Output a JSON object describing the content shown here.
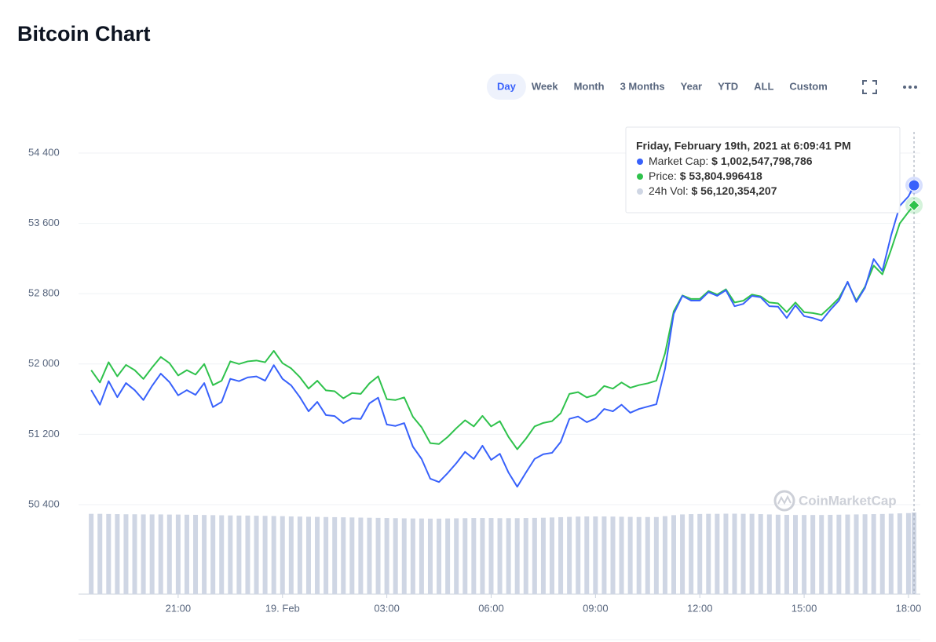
{
  "chart_data": {
    "type": "line",
    "title": "Bitcoin Chart",
    "toolbar": {
      "buttons": [
        "Day",
        "Week",
        "Month",
        "3 Months",
        "Year",
        "YTD",
        "ALL",
        "Custom"
      ],
      "active": 0
    },
    "x": [
      -5.5,
      -5.25,
      -5,
      -4.75,
      -4.5,
      -4.25,
      -4,
      -3.75,
      -3.5,
      -3.25,
      -3,
      -2.75,
      -2.5,
      -2.25,
      -2,
      -1.75,
      -1.5,
      -1.25,
      -1,
      -0.75,
      -0.5,
      -0.25,
      0,
      0.25,
      0.5,
      0.75,
      1,
      1.25,
      1.5,
      1.75,
      2,
      2.25,
      2.5,
      2.75,
      3,
      3.25,
      3.5,
      3.75,
      4,
      4.25,
      4.5,
      4.75,
      5,
      5.25,
      5.5,
      5.75,
      6,
      6.25,
      6.5,
      6.75,
      7,
      7.25,
      7.5,
      7.75,
      8,
      8.25,
      8.5,
      8.75,
      9,
      9.25,
      9.5,
      9.75,
      10,
      10.25,
      10.5,
      10.75,
      11,
      11.25,
      11.5,
      11.75,
      12,
      12.25,
      12.5,
      12.75,
      13,
      13.25,
      13.5,
      13.75,
      14,
      14.25,
      14.5,
      14.75,
      15,
      15.25,
      15.5,
      15.75,
      16,
      16.25,
      16.5,
      16.75,
      17,
      17.25,
      17.5,
      17.75,
      18,
      18.16
    ],
    "xlim": [
      -5.865,
      18.34
    ],
    "xticks": [
      {
        "value": -3,
        "label": "21:00"
      },
      {
        "value": 0,
        "label": "19. Feb"
      },
      {
        "value": 3,
        "label": "03:00"
      },
      {
        "value": 6,
        "label": "06:00"
      },
      {
        "value": 9,
        "label": "09:00"
      },
      {
        "value": 12,
        "label": "12:00"
      },
      {
        "value": 15,
        "label": "15:00"
      },
      {
        "value": 18,
        "label": "18:00"
      }
    ],
    "ylim": [
      50400,
      54400
    ],
    "yticks": [
      {
        "value": 50400,
        "label": "50 400"
      },
      {
        "value": 51200,
        "label": "51 200"
      },
      {
        "value": 52000,
        "label": "52 000"
      },
      {
        "value": 52800,
        "label": "52 800"
      },
      {
        "value": 53600,
        "label": "53 600"
      },
      {
        "value": 54400,
        "label": "54 400"
      }
    ],
    "y2lim": [
      934800000000,
      1009400000000
    ],
    "y3lim": [
      0,
      61500000000
    ],
    "grid": true,
    "series": [
      {
        "color": "#3861fb",
        "axis": "y2",
        "values": [
          959100000000,
          956000000000,
          961000000000,
          957600000000,
          960600000000,
          959100000000,
          957000000000,
          960000000000,
          962600000000,
          960800000000,
          958000000000,
          959100000000,
          958100000000,
          960600000000,
          955500000000,
          956600000000,
          961500000000,
          961000000000,
          961800000000,
          962000000000,
          961100000000,
          964400000000,
          961500000000,
          960100000000,
          957600000000,
          954600000000,
          956600000000,
          953800000000,
          953600000000,
          952100000000,
          953100000000,
          953000000000,
          956300000000,
          957500000000,
          951800000000,
          951500000000,
          952100000000,
          947100000000,
          944500000000,
          940300000000,
          939600000000,
          941500000000,
          943600000000,
          946000000000,
          944500000000,
          947300000000,
          944300000000,
          945600000000,
          941600000000,
          938600000000,
          941600000000,
          944500000000,
          945500000000,
          945800000000,
          948100000000,
          953000000000,
          953500000000,
          952300000000,
          953100000000,
          955100000000,
          954600000000,
          956000000000,
          954300000000,
          955100000000,
          955600000000,
          956100000000,
          963600000000,
          975300000000,
          979100000000,
          978100000000,
          978100000000,
          979900000000,
          979100000000,
          980300000000,
          976900000000,
          977400000000,
          979100000000,
          978800000000,
          976900000000,
          976800000000,
          974400000000,
          977100000000,
          974800000000,
          974400000000,
          973800000000,
          976100000000,
          978100000000,
          982100000000,
          977800000000,
          980800000000,
          986900000000,
          984400000000,
          991900000000,
          998200000000,
          1000200000000,
          1002547798786
        ]
      },
      {
        "color": "#2fc24c",
        "values": [
          51930,
          51790,
          52020,
          51860,
          51990,
          51930,
          51830,
          51960,
          52080,
          52010,
          51870,
          51930,
          51880,
          52000,
          51760,
          51810,
          52030,
          52000,
          52030,
          52040,
          52020,
          52150,
          52010,
          51950,
          51850,
          51720,
          51810,
          51700,
          51690,
          51610,
          51670,
          51660,
          51780,
          51860,
          51600,
          51590,
          51620,
          51400,
          51280,
          51100,
          51090,
          51170,
          51270,
          51360,
          51290,
          51410,
          51290,
          51350,
          51170,
          51030,
          51150,
          51290,
          51330,
          51350,
          51440,
          51660,
          51680,
          51620,
          51650,
          51750,
          51720,
          51790,
          51730,
          51760,
          51780,
          51810,
          52120,
          52600,
          52780,
          52740,
          52740,
          52830,
          52790,
          52850,
          52700,
          52720,
          52790,
          52770,
          52700,
          52690,
          52590,
          52700,
          52590,
          52580,
          52560,
          52650,
          52750,
          52930,
          52720,
          52880,
          53120,
          53020,
          53300,
          53600,
          53730,
          53804.996418
        ]
      },
      {
        "color": "#cfd6e4",
        "axis": "y3",
        "type": "bar",
        "values": [
          55200000000,
          55200000000,
          55100000000,
          55000000000,
          54900000000,
          54900000000,
          54800000000,
          54800000000,
          54800000000,
          54700000000,
          54700000000,
          54600000000,
          54500000000,
          54400000000,
          54300000000,
          54200000000,
          54100000000,
          54000000000,
          54000000000,
          53900000000,
          53800000000,
          53700000000,
          53600000000,
          53400000000,
          53300000000,
          53200000000,
          53100000000,
          53000000000,
          52900000000,
          52800000000,
          52700000000,
          52600000000,
          52500000000,
          52400000000,
          52300000000,
          52200000000,
          52100000000,
          52000000000,
          52000000000,
          51900000000,
          51900000000,
          52000000000,
          52100000000,
          52200000000,
          52300000000,
          52300000000,
          52300000000,
          52200000000,
          52200000000,
          52200000000,
          52300000000,
          52400000000,
          52500000000,
          52700000000,
          52900000000,
          53100000000,
          53300000000,
          53400000000,
          53400000000,
          53400000000,
          53300000000,
          53200000000,
          53100000000,
          53000000000,
          53000000000,
          53000000000,
          53600000000,
          54300000000,
          54800000000,
          55000000000,
          55100000000,
          55200000000,
          55200000000,
          55300000000,
          55300000000,
          55200000000,
          55200000000,
          55000000000,
          54800000000,
          54600000000,
          54500000000,
          54400000000,
          54400000000,
          54400000000,
          54400000000,
          54500000000,
          54600000000,
          54700000000,
          54800000000,
          54900000000,
          55000000000,
          55100000000,
          55300000000,
          55500000000,
          55700000000,
          56120354207
        ]
      }
    ],
    "tooltip": {
      "title": "Friday, February 19th, 2021 at 6:09:41 PM",
      "rows": [
        {
          "label": "Market Cap:",
          "value": "$ 1,002,547,798,786"
        },
        {
          "label": "Price:",
          "value": "$ 53,804.996418"
        },
        {
          "label": "24h Vol:",
          "value": "$ 56,120,354,207"
        }
      ]
    },
    "watermark": "CoinMarketCap"
  }
}
